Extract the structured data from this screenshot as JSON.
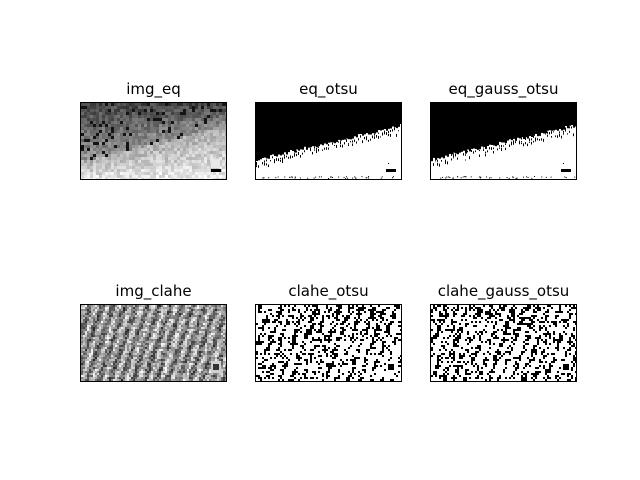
{
  "figure": {
    "panels": [
      {
        "id": "img_eq",
        "title": "img_eq",
        "style": "gray-gradient"
      },
      {
        "id": "eq_otsu",
        "title": "eq_otsu",
        "style": "binary-top"
      },
      {
        "id": "eq_gauss_otsu",
        "title": "eq_gauss_otsu",
        "style": "binary-top"
      },
      {
        "id": "img_clahe",
        "title": "img_clahe",
        "style": "gray-texture"
      },
      {
        "id": "clahe_otsu",
        "title": "clahe_otsu",
        "style": "binary-texture"
      },
      {
        "id": "clahe_gauss_otsu",
        "title": "clahe_gauss_otsu",
        "style": "binary-texture"
      }
    ]
  }
}
